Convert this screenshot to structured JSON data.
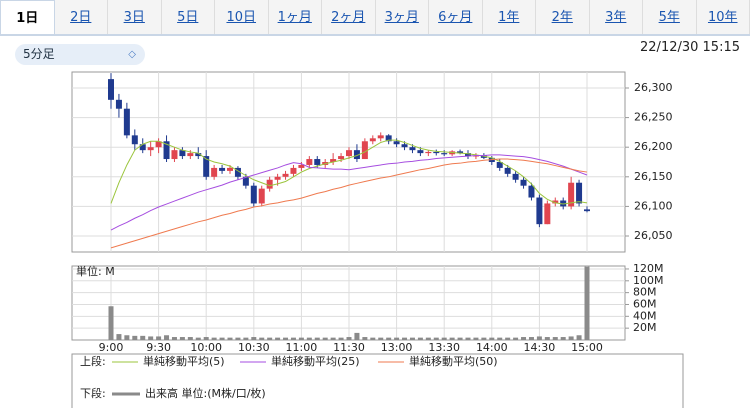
{
  "tabs": [
    "1日",
    "2日",
    "3日",
    "5日",
    "10日",
    "1ヶ月",
    "2ヶ月",
    "3ヶ月",
    "6ヶ月",
    "1年",
    "2年",
    "3年",
    "5年",
    "10年"
  ],
  "active_tab": 0,
  "interval_select": "5分足",
  "timestamp": "22/12/30 15:15",
  "chart_data": [
    {
      "type": "candlestick",
      "legend_title": "上段:",
      "up_color": "#e0454f",
      "down_color": "#1f3a8f",
      "grid": true,
      "categories": [
        "9:00",
        null,
        null,
        null,
        null,
        null,
        "9:30",
        null,
        null,
        null,
        null,
        null,
        "10:00",
        null,
        null,
        null,
        null,
        null,
        "10:30",
        null,
        null,
        null,
        null,
        null,
        "11:00",
        null,
        null,
        null,
        null,
        null,
        "11:30",
        null,
        null,
        null,
        null,
        null,
        "13:00",
        null,
        null,
        null,
        null,
        null,
        "13:30",
        null,
        null,
        null,
        null,
        null,
        "14:00",
        null,
        null,
        null,
        null,
        null,
        "14:30",
        null,
        null,
        null,
        null,
        null,
        "15:00"
      ],
      "open": [
        26315,
        26280,
        26265,
        26220,
        26205,
        26195,
        26200,
        26210,
        26180,
        26195,
        26185,
        26190,
        26185,
        26150,
        26165,
        26160,
        26165,
        26150,
        26135,
        26105,
        26130,
        26145,
        26150,
        26155,
        26165,
        26170,
        26180,
        26170,
        26175,
        26180,
        26185,
        26195,
        26180,
        26210,
        26215,
        26220,
        26210,
        26205,
        26200,
        26195,
        26190,
        26192,
        26190,
        26188,
        26193,
        26190,
        26185,
        26186,
        26182,
        26175,
        26165,
        26155,
        26145,
        26135,
        26115,
        26070,
        26105,
        26110,
        26100,
        26140,
        26095
      ],
      "high": [
        26325,
        26290,
        26275,
        26230,
        26215,
        26210,
        26215,
        26220,
        26200,
        26200,
        26195,
        26200,
        26195,
        26170,
        26170,
        26170,
        26168,
        26155,
        26140,
        26135,
        26150,
        26155,
        26160,
        26170,
        26175,
        26185,
        26185,
        26180,
        26190,
        26190,
        26200,
        26205,
        26215,
        26220,
        26225,
        26222,
        26215,
        26210,
        26205,
        26200,
        26195,
        26196,
        26195,
        26195,
        26196,
        26195,
        26190,
        26190,
        26185,
        26180,
        26170,
        26160,
        26150,
        26140,
        26120,
        26110,
        26115,
        26115,
        26150,
        26145,
        26100
      ],
      "low": [
        26265,
        26250,
        26215,
        26195,
        26190,
        26185,
        26190,
        26175,
        26175,
        26180,
        26180,
        26180,
        26145,
        26145,
        26155,
        26155,
        26145,
        26130,
        26100,
        26100,
        26125,
        26135,
        26145,
        26150,
        26160,
        26165,
        26165,
        26165,
        26170,
        26175,
        26180,
        26175,
        26180,
        26205,
        26210,
        26205,
        26200,
        26195,
        26190,
        26185,
        26185,
        26186,
        26185,
        26185,
        26188,
        26180,
        26180,
        26180,
        26170,
        26160,
        26150,
        26140,
        26130,
        26110,
        26065,
        26070,
        26100,
        26095,
        26095,
        26100,
        26090
      ],
      "close": [
        26280,
        26265,
        26220,
        26205,
        26195,
        26200,
        26210,
        26180,
        26195,
        26185,
        26190,
        26185,
        26150,
        26165,
        26160,
        26165,
        26150,
        26135,
        26105,
        26130,
        26145,
        26150,
        26155,
        26165,
        26170,
        26180,
        26170,
        26175,
        26180,
        26185,
        26195,
        26180,
        26210,
        26215,
        26220,
        26210,
        26205,
        26200,
        26195,
        26190,
        26192,
        26190,
        26188,
        26193,
        26190,
        26185,
        26186,
        26182,
        26175,
        26165,
        26155,
        26145,
        26135,
        26115,
        26070,
        26105,
        26110,
        26100,
        26140,
        26105,
        26092
      ],
      "series": [
        {
          "name": "単純移動平均(5)",
          "color": "#9bc53d",
          "values": [
            26105,
            26140,
            26170,
            26195,
            26205,
            26210,
            26210,
            26205,
            26200,
            26195,
            26192,
            26190,
            26180,
            26175,
            26172,
            26168,
            26160,
            26152,
            26145,
            26140,
            26135,
            26138,
            26142,
            26150,
            26158,
            26164,
            26168,
            26172,
            26175,
            26178,
            26182,
            26186,
            26192,
            26200,
            26208,
            26212,
            26212,
            26208,
            26203,
            26198,
            26195,
            26193,
            26192,
            26191,
            26190,
            26189,
            26187,
            26185,
            26182,
            26176,
            26168,
            26160,
            26150,
            26138,
            26122,
            26112,
            26106,
            26104,
            26106,
            26108,
            26106
          ]
        },
        {
          "name": "単純移動平均(25)",
          "color": "#a64ee0",
          "values": [
            26060,
            26067,
            26073,
            26080,
            26086,
            26093,
            26099,
            26104,
            26109,
            26114,
            26119,
            26124,
            26128,
            26132,
            26136,
            26141,
            26145,
            26149,
            26153,
            26157,
            26161,
            26165,
            26170,
            26174,
            26172,
            26166,
            26165,
            26164,
            26163,
            26163,
            26162,
            26164,
            26166,
            26168,
            26170,
            26172,
            26173,
            26175,
            26176,
            26178,
            26179,
            26181,
            26182,
            26183,
            26184,
            26185,
            26186,
            26186,
            26187,
            26187,
            26186,
            26185,
            26184,
            26182,
            26179,
            26176,
            26172,
            26168,
            26163,
            26158,
            26153
          ]
        },
        {
          "name": "単純移動平均(50)",
          "color": "#ef7a4f",
          "values": [
            26030,
            26034,
            26038,
            26042,
            26046,
            26050,
            26054,
            26058,
            26062,
            26066,
            26070,
            26074,
            26077,
            26081,
            26085,
            26088,
            26092,
            26095,
            26099,
            26101,
            26104,
            26106,
            26109,
            26111,
            26114,
            26118,
            26122,
            26125,
            26129,
            26132,
            26136,
            26139,
            26142,
            26145,
            26148,
            26150,
            26153,
            26156,
            26159,
            26162,
            26164,
            26167,
            26170,
            26172,
            26173,
            26175,
            26176,
            26178,
            26179,
            26180,
            26180,
            26179,
            26178,
            26176,
            26174,
            26172,
            26169,
            26166,
            26163,
            26160,
            26158
          ]
        }
      ],
      "ylim": [
        26023,
        26327
      ],
      "yticks": [
        {
          "value": 26050,
          "label": "26,050"
        },
        {
          "value": 26100,
          "label": "26,100"
        },
        {
          "value": 26150,
          "label": "26,150"
        },
        {
          "value": 26200,
          "label": "26,200"
        },
        {
          "value": 26250,
          "label": "26,250"
        },
        {
          "value": 26300,
          "label": "26,300"
        }
      ]
    },
    {
      "type": "bar",
      "legend_title": "下段:",
      "unit_label": "単位: M",
      "grid": true,
      "series": [
        {
          "name": "出来高 単位:(M株/口/枚)",
          "color": "#8a8a8a",
          "values": [
            57,
            10,
            8,
            7,
            7,
            6,
            6,
            8,
            5,
            5,
            5,
            4,
            5,
            4,
            4,
            4,
            4,
            4,
            5,
            4,
            4,
            4,
            4,
            4,
            4,
            4,
            4,
            4,
            4,
            4,
            5,
            12,
            5,
            4,
            4,
            4,
            4,
            4,
            4,
            4,
            4,
            4,
            4,
            4,
            4,
            4,
            4,
            4,
            4,
            4,
            4,
            4,
            5,
            5,
            6,
            5,
            5,
            5,
            6,
            8,
            124
          ]
        }
      ],
      "ylim": [
        0,
        125
      ],
      "yticks": [
        {
          "value": 20,
          "label": "20M"
        },
        {
          "value": 40,
          "label": "40M"
        },
        {
          "value": 60,
          "label": "60M"
        },
        {
          "value": 80,
          "label": "80M"
        },
        {
          "value": 100,
          "label": "100M"
        },
        {
          "value": 120,
          "label": "120M"
        }
      ]
    }
  ]
}
